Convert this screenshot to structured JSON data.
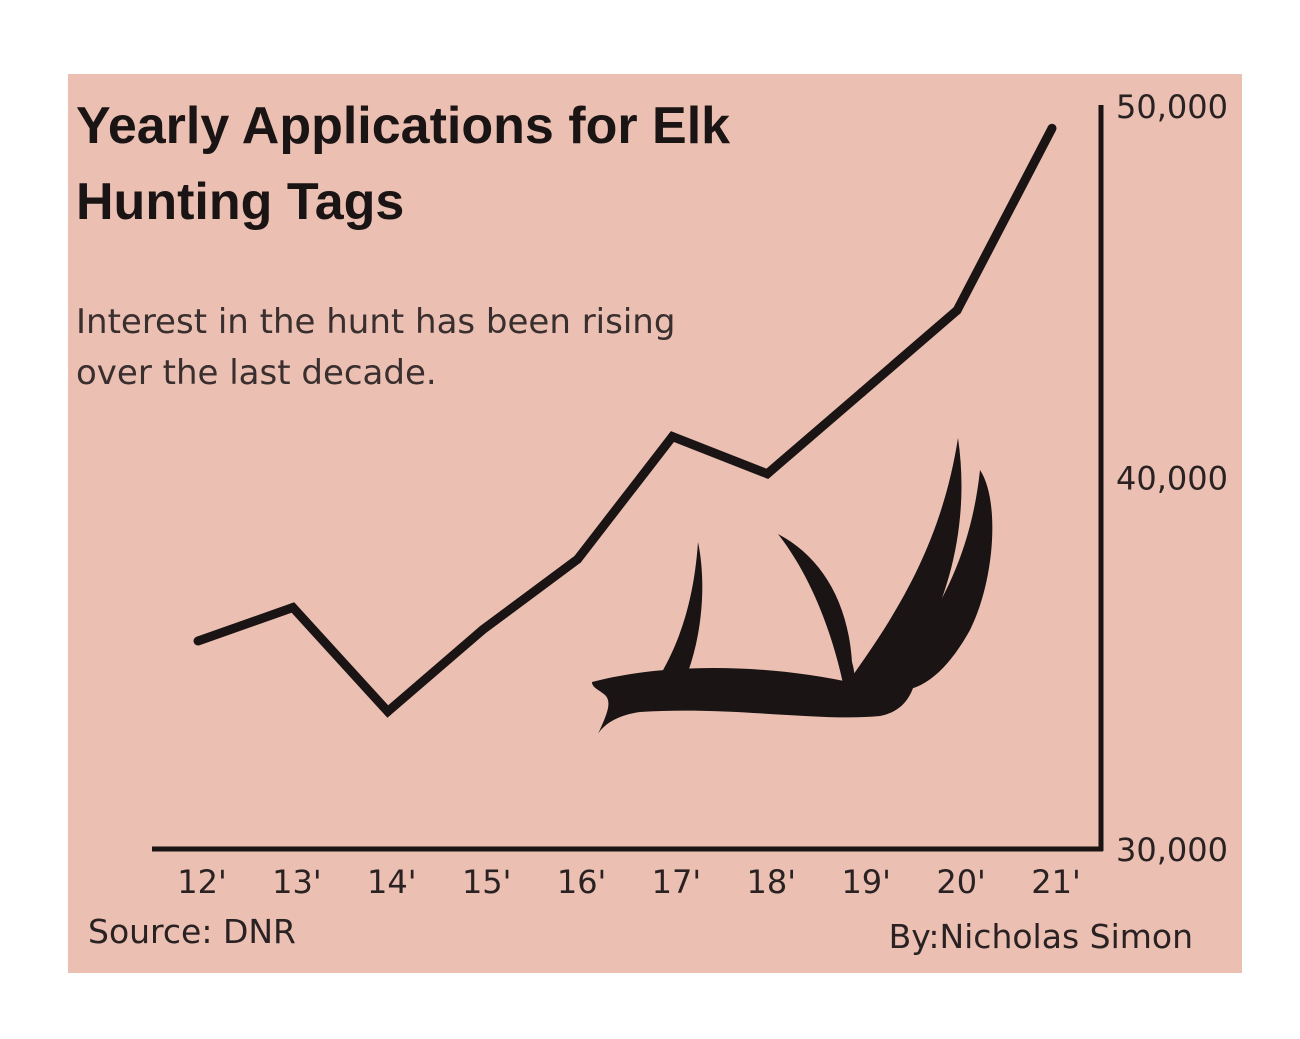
{
  "chart_data": {
    "type": "line",
    "title": "Yearly Applications for Elk Hunting Tags",
    "title_lines": [
      "Yearly Applications for Elk",
      "Hunting Tags"
    ],
    "subtitle": "Interest in the hunt has been rising over the last decade.",
    "subtitle_lines": [
      "Interest in the hunt has been rising",
      "over the last decade."
    ],
    "categories": [
      "12'",
      "13'",
      "14'",
      "15'",
      "16'",
      "17'",
      "18'",
      "19'",
      "20'",
      "21'"
    ],
    "series": [
      {
        "values": [
          35600,
          36500,
          33700,
          35900,
          37800,
          41100,
          40100,
          42300,
          44500,
          49400
        ]
      }
    ],
    "ylim": [
      30000,
      50000
    ],
    "yticks": [
      "30,000",
      "40,000",
      "50,000"
    ],
    "ytick_values": [
      30000,
      40000,
      50000
    ],
    "y_axis_position": "right",
    "grid": false,
    "legend": "none",
    "source": "Source: DNR",
    "byline": "By:Nicholas Simon",
    "colors": {
      "background": "#ebbfb2",
      "line": "#1a1414",
      "antler": "#1a1414"
    },
    "decoration": "antler-icon"
  }
}
